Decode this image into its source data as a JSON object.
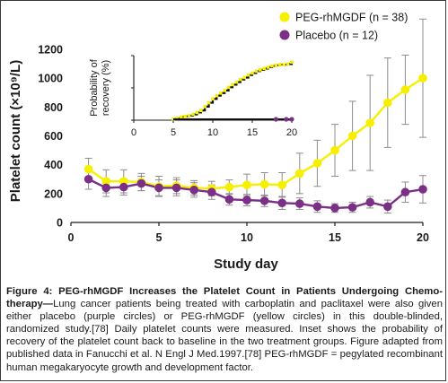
{
  "chart_data": {
    "type": "line",
    "xlabel": "Study day",
    "ylabel": "Platelet count (×10⁹/L)",
    "xlim": [
      0,
      20
    ],
    "ylim": [
      0,
      1200
    ],
    "xticks": [
      0,
      5,
      10,
      15,
      20
    ],
    "yticks": [
      0,
      200,
      400,
      600,
      800,
      1000,
      1200
    ],
    "grid": false,
    "legend_position": "top-right",
    "series": [
      {
        "name": "PEG-rhMGDF (n = 38)",
        "color": "#f7ef00",
        "x": [
          1,
          2,
          3,
          4,
          5,
          6,
          7,
          8,
          9,
          10,
          11,
          12,
          13,
          14,
          15,
          16,
          17,
          18,
          19,
          20
        ],
        "y": [
          370,
          285,
          285,
          280,
          250,
          255,
          240,
          235,
          245,
          260,
          265,
          260,
          340,
          410,
          500,
          600,
          690,
          830,
          920,
          1000
        ],
        "err": [
          75,
          80,
          80,
          60,
          70,
          55,
          50,
          50,
          50,
          75,
          80,
          85,
          140,
          160,
          180,
          240,
          330,
          310,
          240,
          410
        ]
      },
      {
        "name": "Placebo (n = 12)",
        "color": "#7b2f86",
        "x": [
          1,
          2,
          3,
          4,
          5,
          6,
          7,
          8,
          9,
          10,
          11,
          12,
          13,
          14,
          15,
          16,
          17,
          18,
          19,
          20
        ],
        "y": [
          300,
          240,
          245,
          270,
          240,
          240,
          225,
          210,
          160,
          155,
          150,
          135,
          130,
          110,
          100,
          105,
          140,
          110,
          210,
          230
        ],
        "err": [
          70,
          60,
          55,
          50,
          55,
          55,
          50,
          50,
          40,
          40,
          40,
          45,
          40,
          40,
          30,
          35,
          40,
          45,
          70,
          95
        ]
      }
    ],
    "inset": {
      "type": "step",
      "ylabel": "Probability of recovery (%)",
      "xlim": [
        0,
        20
      ],
      "ylim": [
        0,
        100
      ],
      "xticks": [
        0,
        5,
        10,
        15,
        20
      ],
      "yticks": [
        0,
        50,
        100
      ],
      "series": [
        {
          "name": "PEG-rhMGDF",
          "color": "#f7ef00",
          "x": [
            5,
            5.5,
            6,
            6.5,
            7,
            7.5,
            8,
            8.5,
            9,
            9.5,
            10,
            10.5,
            11,
            11.5,
            12,
            12.5,
            13,
            13.5,
            14,
            14.5,
            15,
            15.5,
            16,
            16.5,
            17,
            17.5,
            18,
            18.5,
            19,
            19.5,
            20
          ],
          "y": [
            2,
            3,
            5,
            6,
            7,
            9,
            12,
            15,
            21,
            27,
            33,
            38,
            42,
            46,
            51,
            55,
            59,
            63,
            66,
            70,
            73,
            76,
            78,
            80,
            82,
            84,
            85,
            86,
            86,
            87,
            90
          ]
        },
        {
          "name": "Placebo",
          "color": "#7b2f86",
          "x": [
            18,
            19.3,
            20
          ],
          "y": [
            0,
            0,
            0
          ]
        }
      ]
    }
  },
  "caption": {
    "label": "Figure 4: PEG-rhMGDF Increases the Platelet Count in Patients Undergoing Chemo-therapy—",
    "text": "Lung cancer patients being treated with carboplatin and paclitaxel were also given either placebo (purple circles) or PEG-rhMGDF (yellow circles) in this double-blinded, randomized study.[78] Daily platelet counts were measured. Inset shows the probability of recovery of the platelet count back to baseline in the two treatment groups. Figure adapted from published data in Fanucchi et al. N Engl J Med.1997.[78] PEG-rhMGDF = pegylated recombinant human megakaryocyte growth and development factor."
  }
}
